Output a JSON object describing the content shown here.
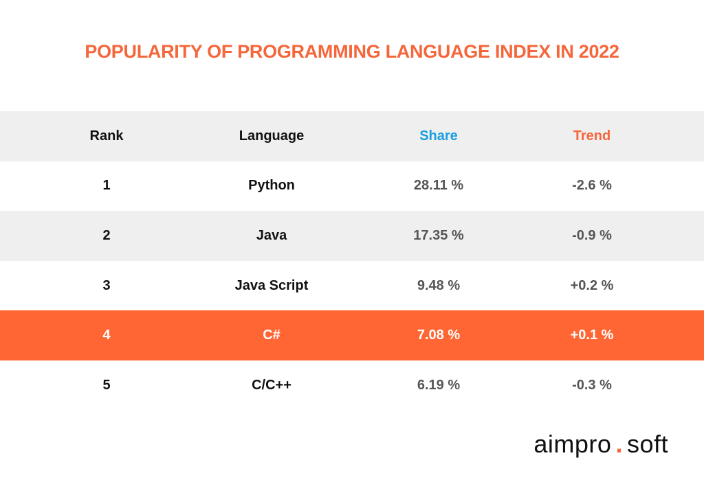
{
  "title": "POPULARITY OF PROGRAMMING LANGUAGE INDEX IN 2022",
  "table": {
    "header": [
      "Rank",
      "Language",
      "Share",
      "Trend"
    ],
    "rows": [
      [
        "1",
        "Python",
        "28.11 %",
        "-2.6 %"
      ],
      [
        "2",
        "Java",
        "17.35 %",
        "-0.9 %"
      ],
      [
        "3",
        "Java Script",
        "9.48 %",
        "+0.2 %"
      ],
      [
        "4",
        "C#",
        "7.08 %",
        "+0.1 %"
      ],
      [
        "5",
        "C/C++",
        "6.19 %",
        "-0.3 %"
      ]
    ]
  },
  "logo": {
    "name": "aimpro",
    "dot": ".",
    "suffix": "soft"
  }
}
